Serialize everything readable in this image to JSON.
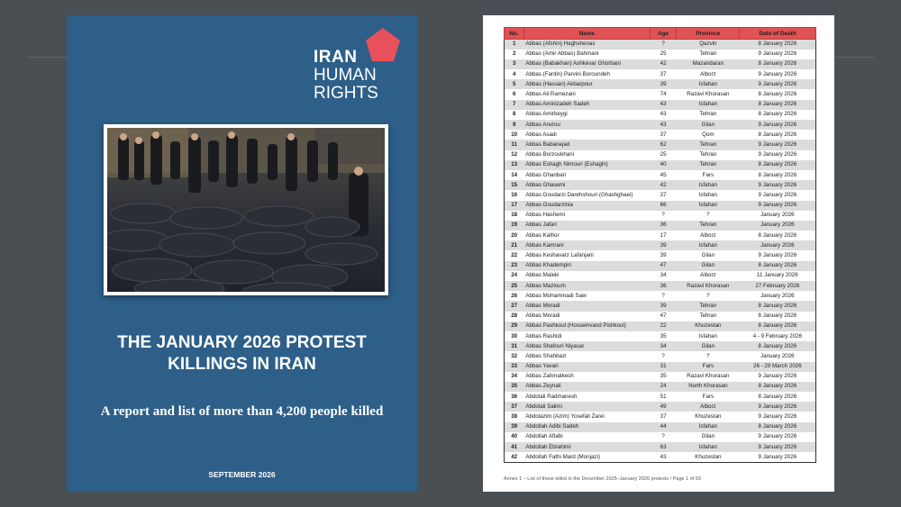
{
  "cover": {
    "logo_line1": "IRAN",
    "logo_line2": "HUMAN",
    "logo_line3": "RIGHTS",
    "title_line1": "THE JANUARY 2026 PROTEST",
    "title_line2": "KILLINGS IN IRAN",
    "subtitle": "A report and list of more than 4,200 people killed",
    "date": "SEPTEMBER 2026",
    "background_color": "#2d5f88",
    "logo_color": "#e8505b"
  },
  "page": {
    "watermark": [
      "IRAN",
      "HUMAN",
      "RIGHTS"
    ],
    "table": {
      "headers": [
        "No.",
        "Name",
        "Age",
        "Province",
        "Date of Death"
      ],
      "rows": [
        [
          "1",
          "Abbas (Afshin) Haghshenas",
          "?",
          "Qazvin",
          "8 January 2026"
        ],
        [
          "2",
          "Abbas (Amir Abbas) Bahmani",
          "25",
          "Tehran",
          "9 January 2026"
        ],
        [
          "3",
          "Abbas (Babakhan) Ashkevar Ghorbani",
          "42",
          "Mazandaran",
          "8 January 2026"
        ],
        [
          "4",
          "Abbas (Fardin) Parvini Boroundeh",
          "37",
          "Alborz",
          "9 January 2026"
        ],
        [
          "5",
          "Abbas (Hassan) Akbarpour",
          "39",
          "Isfahan",
          "9 January 2026"
        ],
        [
          "6",
          "Abbas Ali Ramezani",
          "74",
          "Razavi Khorasan",
          "8 January 2026"
        ],
        [
          "7",
          "Abbas Aminizadeh Sadeh",
          "43",
          "Isfahan",
          "8 January 2026"
        ],
        [
          "8",
          "Abbas Amirbeygi",
          "43",
          "Tehran",
          "8 January 2026"
        ],
        [
          "9",
          "Abbas Arezou",
          "43",
          "Gilan",
          "9 January 2026"
        ],
        [
          "10",
          "Abbas Asadi",
          "37",
          "Qom",
          "8 January 2026"
        ],
        [
          "11",
          "Abbas Babanejad",
          "62",
          "Tehran",
          "9 January 2026"
        ],
        [
          "12",
          "Abbas Borzoukhani",
          "25",
          "Tehran",
          "9 January 2026"
        ],
        [
          "13",
          "Abbas Eshagh Nimouri (Eshaghi)",
          "40",
          "Tehran",
          "8 January 2026"
        ],
        [
          "14",
          "Abbas Ghanbari",
          "45",
          "Fars",
          "8 January 2026"
        ],
        [
          "15",
          "Abbas Ghasemi",
          "42",
          "Isfahan",
          "9 January 2026"
        ],
        [
          "16",
          "Abbas Goudarzi Darehshouri (Ghashghaei)",
          "37",
          "Isfahan",
          "9 January 2026"
        ],
        [
          "17",
          "Abbas Goudarzinia",
          "66",
          "Isfahan",
          "9 January 2026"
        ],
        [
          "18",
          "Abbas Hashemi",
          "?",
          "?",
          "January 2026"
        ],
        [
          "19",
          "Abbas Jafari",
          "36",
          "Tehran",
          "January 2026"
        ],
        [
          "20",
          "Abbas Kalhor",
          "17",
          "Alborz",
          "8 January 2026"
        ],
        [
          "21",
          "Abbas Kamrani",
          "39",
          "Isfahan",
          "January 2026"
        ],
        [
          "22",
          "Abbas Keshavarz Lafanjani",
          "39",
          "Gilan",
          "9 January 2026"
        ],
        [
          "23",
          "Abbas Khadempiri",
          "47",
          "Gilan",
          "8 January 2026"
        ],
        [
          "24",
          "Abbas Maleki",
          "34",
          "Alborz",
          "11 January 2026"
        ],
        [
          "25",
          "Abbas Mazloum",
          "36",
          "Razavi Khorasan",
          "27 February 2026"
        ],
        [
          "26",
          "Abbas Mohammadi Saei",
          "?",
          "?",
          "January 2026"
        ],
        [
          "27",
          "Abbas Moradi",
          "39",
          "Tehran",
          "8 January 2026"
        ],
        [
          "28",
          "Abbas Moradi",
          "47",
          "Tehran",
          "8 January 2026"
        ],
        [
          "29",
          "Abbas Pashkoul (Hosseinvand Pishkoul)",
          "22",
          "Khuzestan",
          "8 January 2026"
        ],
        [
          "30",
          "Abbas Rashidi",
          "35",
          "Isfahan",
          "4 - 9 February 2026"
        ],
        [
          "31",
          "Abbas Shafouri Niyasar",
          "34",
          "Gilan",
          "8 January 2026"
        ],
        [
          "32",
          "Abbas Shahbazi",
          "?",
          "?",
          "January 2026"
        ],
        [
          "33",
          "Abbas Yavari",
          "31",
          "Fars",
          "26 - 29 March 2026"
        ],
        [
          "34",
          "Abbas Zahmatkesh",
          "35",
          "Razavi Khorasan",
          "9 January 2026"
        ],
        [
          "35",
          "Abbas Zeynali",
          "24",
          "North Khorasan",
          "8 January 2026"
        ],
        [
          "36",
          "Abdolali Radmanesh",
          "51",
          "Fars",
          "8 January 2026"
        ],
        [
          "37",
          "Abdolali Salimi",
          "49",
          "Alborz",
          "9 January 2026"
        ],
        [
          "38",
          "Abdolazim (Azim) Yosefali Zarei",
          "37",
          "Khuzestan",
          "9 January 2026"
        ],
        [
          "39",
          "Abdollah Adibi Sadeh",
          "44",
          "Isfahan",
          "8 January 2026"
        ],
        [
          "40",
          "Abdollah Aftabi",
          "?",
          "Gilan",
          "9 January 2026"
        ],
        [
          "41",
          "Abdollah Ebrahimi",
          "63",
          "Isfahan",
          "9 January 2026"
        ],
        [
          "42",
          "Abdollah Fathi Mard (Monjazi)",
          "43",
          "Khuzestan",
          "9 January 2026"
        ]
      ]
    },
    "footer": "Annex 1 – List of those killed in the December 2025–January 2026 protests / Page 1 of 93",
    "header_color": "#e05253"
  }
}
